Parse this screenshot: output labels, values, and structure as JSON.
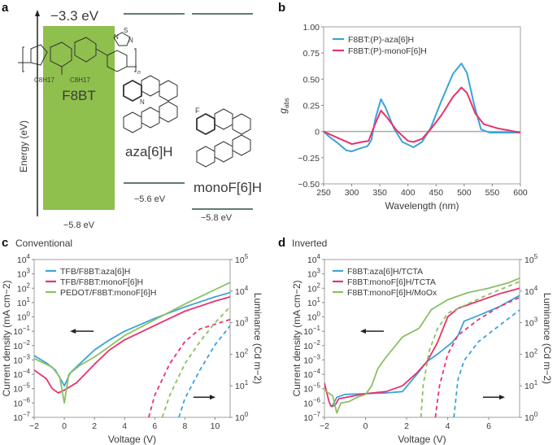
{
  "panel_a": {
    "label": "a",
    "axis_label": "Energy (eV)",
    "f8bt_lumo": "−3.3 eV",
    "f8bt_homo": "−5.8 eV",
    "f8bt_name": "F8BT",
    "f8bt_sub1": "C8H17",
    "f8bt_sub2": "C8H17",
    "f8bt_n": "n",
    "atom_S": "S",
    "atom_N1": "N",
    "atom_N2": "N",
    "aza_name": "aza[6]H",
    "aza_homo": "−5.6 eV",
    "aza_atom": "N",
    "monof_name": "monoF[6]H",
    "monof_homo": "−5.8 eV",
    "monof_atom": "F",
    "colors": {
      "f8bt": "#8fbf4d",
      "level": "#5f7a7a"
    }
  },
  "chart_data": [
    {
      "id": "b",
      "panel_label": "b",
      "type": "line",
      "title": "",
      "xlabel": "Wavelength (nm)",
      "ylabel": "g",
      "ylabel_sub": "abs",
      "xlim": [
        250,
        600
      ],
      "ylim": [
        -0.5,
        1.0
      ],
      "xticks": [
        "250",
        "300",
        "350",
        "400",
        "450",
        "500",
        "550",
        "600"
      ],
      "xtick_values": [
        250,
        300,
        350,
        400,
        450,
        500,
        550,
        600
      ],
      "yticks": [
        "−0.50",
        "−0.25",
        "0",
        "0.25",
        "0.50",
        "0.75",
        "1.00"
      ],
      "ytick_values": [
        -0.5,
        -0.25,
        0,
        0.25,
        0.5,
        0.75,
        1.0
      ],
      "zero_line": true,
      "legend_position": "top-left",
      "series": [
        {
          "name": "F8BT:(P)-aza[6]H",
          "color": "#3aa3dc",
          "style": "solid",
          "points": [
            [
              250,
              0
            ],
            [
              260,
              -0.05
            ],
            [
              275,
              -0.11
            ],
            [
              290,
              -0.18
            ],
            [
              300,
              -0.19
            ],
            [
              315,
              -0.16
            ],
            [
              328,
              -0.14
            ],
            [
              335,
              -0.08
            ],
            [
              342,
              0.12
            ],
            [
              352,
              0.31
            ],
            [
              360,
              0.23
            ],
            [
              375,
              0.03
            ],
            [
              390,
              -0.1
            ],
            [
              410,
              -0.15
            ],
            [
              425,
              -0.1
            ],
            [
              440,
              0.03
            ],
            [
              460,
              0.3
            ],
            [
              480,
              0.55
            ],
            [
              495,
              0.65
            ],
            [
              505,
              0.56
            ],
            [
              518,
              0.25
            ],
            [
              530,
              0.02
            ],
            [
              545,
              -0.01
            ],
            [
              600,
              -0.01
            ]
          ]
        },
        {
          "name": "F8BT:(P)-monoF[6]H",
          "color": "#e8336a",
          "style": "solid",
          "points": [
            [
              250,
              0
            ],
            [
              275,
              -0.06
            ],
            [
              300,
              -0.12
            ],
            [
              318,
              -0.1
            ],
            [
              330,
              -0.09
            ],
            [
              340,
              0.05
            ],
            [
              352,
              0.2
            ],
            [
              362,
              0.14
            ],
            [
              380,
              0.01
            ],
            [
              400,
              -0.09
            ],
            [
              410,
              -0.1
            ],
            [
              425,
              -0.07
            ],
            [
              440,
              0.02
            ],
            [
              460,
              0.16
            ],
            [
              480,
              0.33
            ],
            [
              495,
              0.42
            ],
            [
              505,
              0.37
            ],
            [
              520,
              0.17
            ],
            [
              535,
              0.07
            ],
            [
              560,
              0.03
            ],
            [
              580,
              0.01
            ],
            [
              600,
              -0.01
            ]
          ]
        }
      ]
    },
    {
      "id": "c",
      "panel_label": "c",
      "subtitle": "Conventional",
      "type": "line",
      "xlabel": "Voltage (V)",
      "ylabel": "Current density (mA cm−2)",
      "y2label": "Luminance (Cd m−2)",
      "xlim": [
        -2,
        11
      ],
      "ylim_log10": [
        -7,
        4
      ],
      "y2lim_log10": [
        0,
        5
      ],
      "xticks": [
        "−2",
        "0",
        "2",
        "4",
        "6",
        "8",
        "10"
      ],
      "xtick_values": [
        -2,
        0,
        2,
        4,
        6,
        8,
        10
      ],
      "yticks": [
        "10-7",
        "10-6",
        "10-5",
        "10-4",
        "10-3",
        "10-2",
        "10-1",
        "100",
        "101",
        "102",
        "103",
        "104"
      ],
      "y2ticks": [
        "100",
        "101",
        "102",
        "103",
        "104",
        "105"
      ],
      "arrow_left_label": "current density axis",
      "legend_position": "top-left",
      "series": [
        {
          "name": "TFB/F8BT:aza[6]H",
          "color": "#3aa3dc",
          "current_log10": [
            [
              -2,
              -2.7
            ],
            [
              -1.2,
              -3.2
            ],
            [
              -0.6,
              -3.7
            ],
            [
              0,
              -4.8
            ],
            [
              0.4,
              -3.9
            ],
            [
              1,
              -3.3
            ],
            [
              2,
              -2.3
            ],
            [
              3,
              -1.6
            ],
            [
              4,
              -1
            ],
            [
              6,
              -0.1
            ],
            [
              8,
              0.7
            ],
            [
              10,
              1.4
            ],
            [
              11,
              1.7
            ]
          ],
          "luminance_log10": [
            [
              7.6,
              0
            ],
            [
              8,
              0.6
            ],
            [
              9,
              1.5
            ],
            [
              10,
              2.3
            ],
            [
              11,
              2.9
            ]
          ]
        },
        {
          "name": "TFB/F8BT:monoF[6]H",
          "color": "#e8336a",
          "current_log10": [
            [
              -2,
              -3.7
            ],
            [
              -1.2,
              -4.3
            ],
            [
              -0.8,
              -5
            ],
            [
              -0.4,
              -5.3
            ],
            [
              0,
              -5.1
            ],
            [
              0.8,
              -4.6
            ],
            [
              2,
              -3.3
            ],
            [
              3,
              -2.3
            ],
            [
              4,
              -1.6
            ],
            [
              6,
              -0.6
            ],
            [
              8,
              0.4
            ],
            [
              10,
              1.1
            ],
            [
              11,
              1.4
            ]
          ],
          "luminance_log10": [
            [
              5.6,
              0
            ],
            [
              6,
              0.7
            ],
            [
              7,
              1.7
            ],
            [
              8,
              2.4
            ],
            [
              9,
              2.8
            ],
            [
              11,
              3.1
            ]
          ]
        },
        {
          "name": "PEDOT/F8BT:monoF[6]H",
          "color": "#8cc063",
          "current_log10": [
            [
              -2,
              -2.9
            ],
            [
              -0.8,
              -3.5
            ],
            [
              -0.3,
              -4.2
            ],
            [
              0,
              -6
            ],
            [
              0.3,
              -4
            ],
            [
              1,
              -3.4
            ],
            [
              2,
              -2.8
            ],
            [
              4,
              -1.3
            ],
            [
              6,
              -0.2
            ],
            [
              8,
              0.9
            ],
            [
              10,
              1.9
            ],
            [
              11,
              2.4
            ]
          ],
          "luminance_log10": [
            [
              6.5,
              0
            ],
            [
              7,
              0.7
            ],
            [
              8,
              1.7
            ],
            [
              9,
              2.4
            ],
            [
              10,
              3
            ],
            [
              11,
              3.5
            ]
          ]
        }
      ]
    },
    {
      "id": "d",
      "panel_label": "d",
      "subtitle": "Inverted",
      "type": "line",
      "xlabel": "Voltage (V)",
      "ylabel": "Current density (mA cm−2)",
      "y2label": "Luminance (Cd m−2)",
      "xlim": [
        -2,
        7.5
      ],
      "ylim_log10": [
        -7,
        4
      ],
      "y2lim_log10": [
        0,
        5
      ],
      "xticks": [
        "−2",
        "0",
        "2",
        "4",
        "6"
      ],
      "xtick_values": [
        -2,
        0,
        2,
        4,
        6
      ],
      "yticks": [
        "10-7",
        "10-6",
        "10-5",
        "10-4",
        "10-3",
        "10-2",
        "10-1",
        "100",
        "101",
        "102",
        "103",
        "104"
      ],
      "y2ticks": [
        "100",
        "101",
        "102",
        "103",
        "104",
        "105"
      ],
      "legend_position": "top-left",
      "series": [
        {
          "name": "F8BT:aza[6]H/TCTA",
          "color": "#3aa3dc",
          "current_log10": [
            [
              -1.65,
              -6.3
            ],
            [
              -1.4,
              -5.6
            ],
            [
              -1,
              -5.4
            ],
            [
              0,
              -5.35
            ],
            [
              1,
              -5.3
            ],
            [
              1.8,
              -5.2
            ],
            [
              2.5,
              -4
            ],
            [
              3,
              -3.1
            ],
            [
              3.5,
              -2.6
            ],
            [
              4.2,
              -1.8
            ],
            [
              4.5,
              -1.3
            ],
            [
              4.8,
              -0.3
            ],
            [
              5.5,
              0.1
            ],
            [
              6.5,
              0.7
            ],
            [
              7.5,
              1.5
            ]
          ],
          "luminance_log10": [
            [
              4.3,
              0
            ],
            [
              4.5,
              1.2
            ],
            [
              4.8,
              1.8
            ],
            [
              5.5,
              2.4
            ],
            [
              6.5,
              2.9
            ],
            [
              7.5,
              3.4
            ]
          ]
        },
        {
          "name": "F8BT:monoF[6]H/TCTA",
          "color": "#e8336a",
          "current_log10": [
            [
              -2,
              -4.6
            ],
            [
              -1.8,
              -5.8
            ],
            [
              -1.7,
              -6.2
            ],
            [
              -1.5,
              -6.2
            ],
            [
              -1.3,
              -5.7
            ],
            [
              0,
              -5.35
            ],
            [
              1,
              -5.2
            ],
            [
              1.8,
              -4.8
            ],
            [
              2.5,
              -3.9
            ],
            [
              3,
              -3.1
            ],
            [
              3.5,
              -1.8
            ],
            [
              4,
              0
            ],
            [
              4.5,
              0.6
            ],
            [
              5.5,
              1.1
            ],
            [
              6.5,
              1.6
            ],
            [
              7.5,
              2
            ]
          ],
          "luminance_log10": [
            [
              3.4,
              0
            ],
            [
              3.6,
              1
            ],
            [
              4,
              2
            ],
            [
              4.5,
              2.6
            ],
            [
              5.5,
              3.1
            ],
            [
              6.5,
              3.5
            ],
            [
              7.5,
              3.8
            ]
          ]
        },
        {
          "name": "F8BT:monoF[6]H/MoOx",
          "color": "#8cc063",
          "current_log10": [
            [
              -2,
              -5.1
            ],
            [
              -1.6,
              -5.5
            ],
            [
              -1.4,
              -6.7
            ],
            [
              -1.2,
              -6
            ],
            [
              -0.8,
              -5.9
            ],
            [
              -0.4,
              -5.6
            ],
            [
              0,
              -5.4
            ],
            [
              0.3,
              -4.8
            ],
            [
              0.6,
              -3.6
            ],
            [
              1,
              -2.8
            ],
            [
              1.8,
              -1.4
            ],
            [
              2.6,
              -0.8
            ],
            [
              3.2,
              0.5
            ],
            [
              4,
              1.2
            ],
            [
              5,
              1.7
            ],
            [
              6,
              2
            ],
            [
              7,
              2.4
            ],
            [
              7.5,
              2.7
            ]
          ],
          "luminance_log10": [
            [
              2.7,
              0
            ],
            [
              2.8,
              1
            ],
            [
              3.1,
              2.1
            ],
            [
              3.5,
              2.8
            ],
            [
              4,
              3.3
            ],
            [
              5,
              3.6
            ],
            [
              6,
              3.9
            ],
            [
              7.5,
              4.3
            ]
          ]
        }
      ]
    }
  ]
}
